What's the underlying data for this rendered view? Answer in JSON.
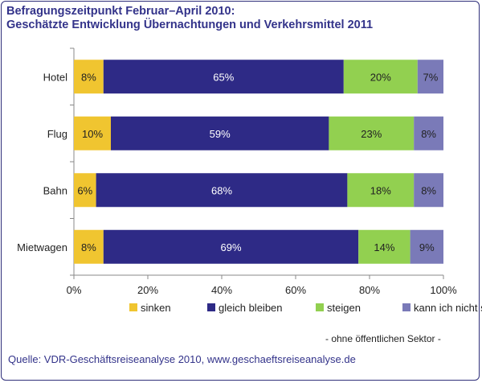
{
  "title_line1": "Befragungszeitpunkt Februar–April 2010:",
  "title_line2": "Geschätzte Entwicklung Übernachtungen und Verkehrsmittel 2011",
  "note": "- ohne öffentlichen Sektor -",
  "source": "Quelle: VDR-Geschäftsreiseanalyse 2010, www.geschaeftsreiseanalyse.de",
  "colors": {
    "sinken": "#f0c530",
    "gleich bleiben": "#2e2a86",
    "steigen": "#92d050",
    "kann ich nicht sagen": "#7a7ab8"
  },
  "chart_data": {
    "type": "bar",
    "orientation": "horizontal",
    "stacked": true,
    "percent": true,
    "categories": [
      "Hotel",
      "Flug",
      "Bahn",
      "Mietwagen"
    ],
    "series": [
      {
        "name": "sinken",
        "values": [
          8,
          10,
          6,
          8
        ],
        "labels": [
          "8%",
          "10%",
          "6%",
          "8%"
        ]
      },
      {
        "name": "gleich bleiben",
        "values": [
          65,
          59,
          68,
          69
        ],
        "labels": [
          "65%",
          "59%",
          "68%",
          "69%"
        ]
      },
      {
        "name": "steigen",
        "values": [
          20,
          23,
          18,
          14
        ],
        "labels": [
          "20%",
          "23%",
          "18%",
          "14%"
        ]
      },
      {
        "name": "kann ich nicht sagen",
        "values": [
          7,
          8,
          8,
          9
        ],
        "labels": [
          "7%",
          "8%",
          "8%",
          "9%"
        ]
      }
    ],
    "xticks": [
      "0%",
      "20%",
      "40%",
      "60%",
      "80%",
      "100%"
    ],
    "xlim": [
      0,
      100
    ],
    "legend_position": "bottom"
  }
}
